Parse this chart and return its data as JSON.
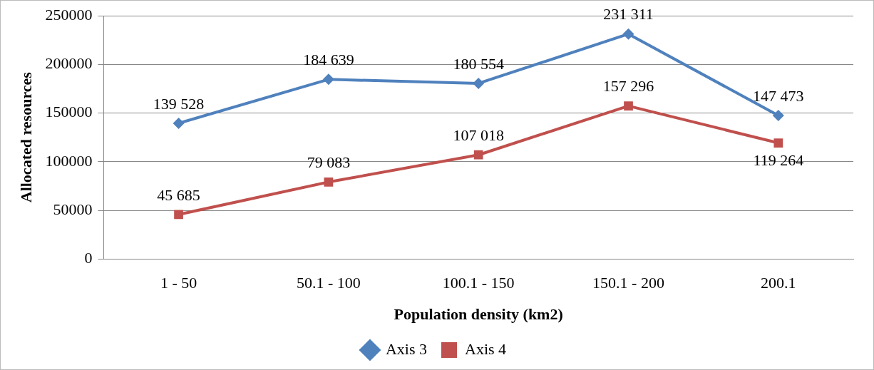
{
  "chart_data": {
    "type": "line",
    "xlabel": "Population density (km2)",
    "ylabel": "Allocated resources",
    "categories": [
      "1 - 50",
      "50.1 - 100",
      "100.1 - 150",
      "150.1 - 200",
      "200.1"
    ],
    "series": [
      {
        "name": "Axis 3",
        "color": "#4f81bd",
        "marker": "diamond",
        "values": [
          139528,
          184639,
          180554,
          231311,
          147473
        ],
        "value_labels": [
          "139 528",
          "184 639",
          "180 554",
          "231 311",
          "147 473"
        ]
      },
      {
        "name": "Axis 4",
        "color": "#c0504d",
        "marker": "square",
        "values": [
          45685,
          79083,
          107018,
          157296,
          119264
        ],
        "value_labels": [
          "45 685",
          "79 083",
          "107 018",
          "157 296",
          "119 264"
        ]
      }
    ],
    "ylim": [
      0,
      250000
    ],
    "yticks": [
      0,
      50000,
      100000,
      150000,
      200000,
      250000
    ],
    "grid": "y",
    "legend": "bottom",
    "line_style": "solid"
  }
}
